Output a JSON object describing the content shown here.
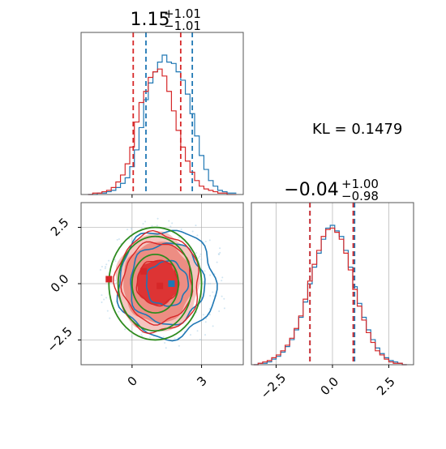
{
  "chart_data": [
    {
      "type": "histogram",
      "panel": "top-left marginal (parameter 1)",
      "title_main": "1.15",
      "title_sup": "+1.01",
      "title_sub": "−1.01",
      "xlim": [
        -2.2,
        4.8
      ],
      "series": [
        {
          "color": "#1f77b4",
          "quantiles": [
            0.6,
            2.6
          ],
          "bins_x": [
            -1.8,
            -1.6,
            -1.4,
            -1.2,
            -1.0,
            -0.8,
            -0.6,
            -0.4,
            -0.2,
            0.0,
            0.2,
            0.4,
            0.6,
            0.8,
            1.0,
            1.2,
            1.4,
            1.6,
            1.8,
            2.0,
            2.2,
            2.4,
            2.6,
            2.8,
            3.0,
            3.2,
            3.4,
            3.6,
            3.8,
            4.0,
            4.2,
            4.4
          ],
          "counts": [
            0,
            0,
            1,
            1,
            2,
            3,
            5,
            8,
            12,
            20,
            32,
            48,
            68,
            80,
            88,
            95,
            100,
            95,
            94,
            88,
            82,
            72,
            58,
            42,
            28,
            18,
            10,
            6,
            3,
            2,
            1,
            1
          ]
        },
        {
          "color": "#d62728",
          "quantiles": [
            0.05,
            2.1
          ],
          "bins_x": [
            -1.8,
            -1.6,
            -1.4,
            -1.2,
            -1.0,
            -0.8,
            -0.6,
            -0.4,
            -0.2,
            0.0,
            0.2,
            0.4,
            0.6,
            0.8,
            1.0,
            1.2,
            1.4,
            1.6,
            1.8,
            2.0,
            2.2,
            2.4,
            2.6,
            2.8,
            3.0,
            3.2,
            3.4,
            3.6,
            3.8,
            4.0,
            4.2,
            4.4
          ],
          "counts": [
            0,
            1,
            1,
            2,
            3,
            5,
            9,
            14,
            22,
            34,
            52,
            66,
            74,
            84,
            88,
            90,
            85,
            74,
            60,
            46,
            34,
            24,
            16,
            10,
            6,
            4,
            3,
            2,
            1,
            1,
            0,
            0
          ]
        }
      ]
    },
    {
      "type": "histogram",
      "panel": "bottom-right marginal (parameter 2)",
      "title_main": "−0.04",
      "title_sup": "+1.00",
      "title_sub": "−0.98",
      "xlim": [
        -3.6,
        3.6
      ],
      "xticks": [
        "−2.5",
        "0.0",
        "2.5"
      ],
      "tick_values": [
        -2.5,
        0.0,
        2.5
      ],
      "series": [
        {
          "color": "#1f77b4",
          "quantiles": [
            -1.0,
            0.98
          ],
          "bins_x": [
            -3.4,
            -3.2,
            -3.0,
            -2.8,
            -2.6,
            -2.4,
            -2.2,
            -2.0,
            -1.8,
            -1.6,
            -1.4,
            -1.2,
            -1.0,
            -0.8,
            -0.6,
            -0.4,
            -0.2,
            0.0,
            0.2,
            0.4,
            0.6,
            0.8,
            1.0,
            1.2,
            1.4,
            1.6,
            1.8,
            2.0,
            2.2,
            2.4,
            2.6,
            2.8,
            3.0,
            3.2
          ],
          "counts": [
            0,
            1,
            1,
            2,
            4,
            6,
            9,
            13,
            18,
            25,
            34,
            45,
            58,
            70,
            80,
            90,
            98,
            100,
            96,
            92,
            82,
            70,
            56,
            44,
            34,
            25,
            18,
            12,
            8,
            5,
            3,
            2,
            1,
            0
          ]
        },
        {
          "color": "#d62728",
          "quantiles": [
            -1.0,
            0.92
          ],
          "bins_x": [
            -3.4,
            -3.2,
            -3.0,
            -2.8,
            -2.6,
            -2.4,
            -2.2,
            -2.0,
            -1.8,
            -1.6,
            -1.4,
            -1.2,
            -1.0,
            -0.8,
            -0.6,
            -0.4,
            -0.2,
            0.0,
            0.2,
            0.4,
            0.6,
            0.8,
            1.0,
            1.2,
            1.4,
            1.6,
            1.8,
            2.0,
            2.2,
            2.4,
            2.6,
            2.8,
            3.0,
            3.2
          ],
          "counts": [
            0,
            1,
            2,
            3,
            5,
            7,
            10,
            14,
            19,
            26,
            35,
            47,
            60,
            72,
            82,
            92,
            97,
            98,
            95,
            90,
            80,
            68,
            54,
            42,
            32,
            23,
            16,
            10,
            7,
            4,
            2,
            1,
            1,
            0
          ]
        }
      ]
    },
    {
      "type": "contour",
      "panel": "bottom-left joint (parameter 1 vs parameter 2)",
      "xlim": [
        -2.2,
        4.8
      ],
      "ylim": [
        -3.6,
        3.6
      ],
      "xticks": [
        "0",
        "3"
      ],
      "xtick_values": [
        0,
        3
      ],
      "yticks": [
        "2.5",
        "0.0",
        "−2.5"
      ],
      "ytick_values": [
        2.5,
        0.0,
        -2.5
      ],
      "contours": [
        {
          "color": "#1f77b4",
          "center": [
            1.5,
            0.0
          ],
          "radii": [
            [
              0.9,
              1.0
            ],
            [
              1.6,
              1.8
            ],
            [
              2.1,
              2.4
            ]
          ]
        },
        {
          "color": "#d62728",
          "center": [
            1.1,
            0.05
          ],
          "radii": [
            [
              0.9,
              1.0
            ],
            [
              1.5,
              1.8
            ],
            [
              1.8,
              2.2
            ]
          ],
          "filled": true
        },
        {
          "color": "#2e8b1f",
          "center": [
            1.0,
            0.0
          ],
          "radii": [
            [
              1.0,
              1.3
            ],
            [
              1.6,
              2.1
            ],
            [
              2.0,
              2.5
            ]
          ]
        }
      ],
      "markers": [
        {
          "color": "#1f77b4",
          "x": 1.7,
          "y": 0.0,
          "label": "blue marker"
        },
        {
          "color": "#d62728",
          "x": 1.2,
          "y": -0.1,
          "label": "red marker"
        },
        {
          "color": "#d62728",
          "x": 0.5,
          "y": 0.55,
          "label": "red marker"
        },
        {
          "color": "#d62728",
          "x": -1.0,
          "y": 0.2,
          "label": "red marker"
        }
      ]
    }
  ],
  "kl_label": "KL = 0.1479",
  "colors": {
    "blue": "#1f77b4",
    "red": "#d62728",
    "green": "#2e8b1f",
    "grid": "#b0b0b0"
  }
}
